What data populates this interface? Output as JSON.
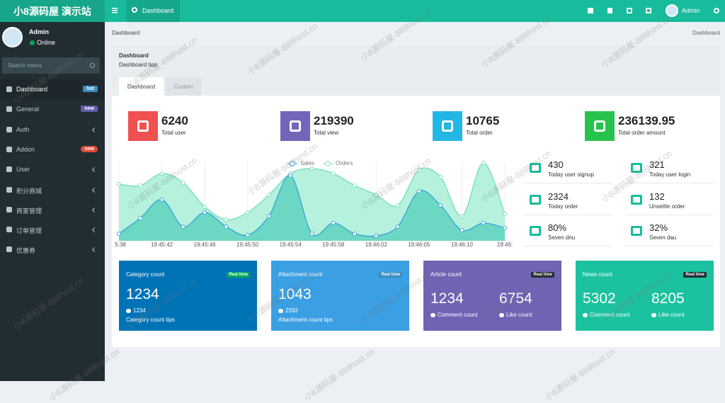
{
  "header": {
    "logo": "小8源码屋 演示站",
    "tab": "Dashboard",
    "user": "Admin"
  },
  "sidebar": {
    "user": "Admin",
    "status": "Online",
    "search": "Search menu",
    "menu": [
      {
        "label": "Dashboard",
        "badge": "hot",
        "badge_color": "#3c8dbc"
      },
      {
        "label": "General",
        "badge": "new",
        "badge_color": "#605ca8"
      },
      {
        "label": "Auth"
      },
      {
        "label": "Addon",
        "badge": "new",
        "badge_color": "#dd4b39"
      },
      {
        "label": "User"
      },
      {
        "label": "积分商城"
      },
      {
        "label": "商家管理"
      },
      {
        "label": "订单管理"
      },
      {
        "label": "优惠券"
      }
    ]
  },
  "breadcrumb": {
    "left": "Dashboard",
    "right": "Dashboard"
  },
  "panel": {
    "title": "Dashboard",
    "tips": "Dashboard tips",
    "tabs": [
      "Dashboard",
      "Custom"
    ]
  },
  "stats": [
    {
      "value": "6240",
      "label": "Total user",
      "color": "#f05050"
    },
    {
      "value": "219390",
      "label": "Total view",
      "color": "#7266ba"
    },
    {
      "value": "10765",
      "label": "Total order",
      "color": "#23b7e5"
    },
    {
      "value": "236139.95",
      "label": "Total order amount",
      "color": "#27c24c"
    }
  ],
  "chart_data": {
    "type": "line",
    "x": [
      "5:38",
      null,
      "19:45:42",
      null,
      "19:45:46",
      null,
      "19:45:50",
      null,
      "19:45:54",
      null,
      "19:45:58",
      null,
      "19:46:02",
      null,
      "19:46:05",
      null,
      "19:46:10",
      null,
      "19:46:"
    ],
    "ylim": [
      0,
      120
    ],
    "series": [
      {
        "name": "Sales",
        "color": "#3fa9d8",
        "fill": "#5fd3c0",
        "values": [
          10,
          32,
          58,
          20,
          40,
          20,
          8,
          35,
          92,
          10,
          25,
          10,
          7,
          20,
          70,
          50,
          15,
          25,
          18
        ]
      },
      {
        "name": "Orders",
        "color": "#7ee0c0",
        "fill": "#a8eed6",
        "values": [
          80,
          78,
          95,
          82,
          48,
          30,
          40,
          65,
          95,
          102,
          95,
          78,
          65,
          50,
          100,
          90,
          35,
          110,
          38
        ]
      }
    ]
  },
  "mini_stats": [
    {
      "value": "430",
      "label": "Today user signup"
    },
    {
      "value": "321",
      "label": "Today user login"
    },
    {
      "value": "2324",
      "label": "Today order"
    },
    {
      "value": "132",
      "label": "Unsettle order"
    },
    {
      "value": "80%",
      "label": "Seven dnu"
    },
    {
      "value": "32%",
      "label": "Seven dau"
    }
  ],
  "cards": [
    {
      "title": "Category count",
      "badge": "Real time",
      "value": "1234",
      "sub": "1234",
      "tips": "Category count tips",
      "color": "#0073b7",
      "badge_color": "#00a65a"
    },
    {
      "title": "Attachment count",
      "badge": "Real time",
      "value": "1043",
      "sub": "2592",
      "tips": "Attachment count tips",
      "color": "#3a9fe3",
      "badge_color": "#3c8dbc"
    },
    {
      "title": "Article count",
      "badge": "Real time",
      "items": [
        {
          "value": "1234",
          "label": "Comment count"
        },
        {
          "value": "6754",
          "label": "Like count"
        }
      ],
      "color": "#6f63b3",
      "badge_color": "#222d32"
    },
    {
      "title": "News count",
      "badge": "Real time",
      "items": [
        {
          "value": "5302",
          "label": "Comment count"
        },
        {
          "value": "8205",
          "label": "Like count"
        }
      ],
      "color": "#1cc29f",
      "badge_color": "#222d32"
    }
  ],
  "watermark": "小8源码屋-888host.cn"
}
